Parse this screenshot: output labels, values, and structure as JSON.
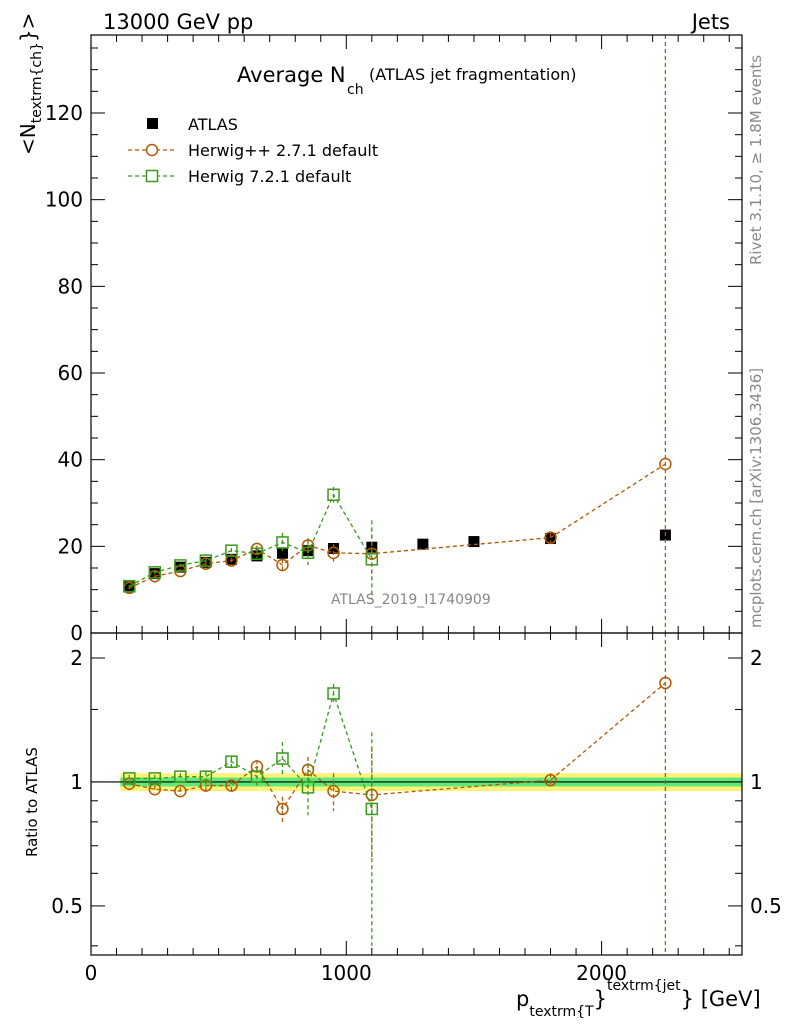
{
  "header": {
    "energy_label": "13000 GeV pp",
    "process_label": "Jets",
    "title_main": "Average N",
    "title_sub": "ch",
    "title_paren": "(ATLAS jet fragmentation)",
    "analysis_id": "ATLAS_2019_I1740909",
    "side_rivet": "Rivet 3.1.10, ≥ 1.8M events",
    "side_mcplots": "mcplots.cern.ch [arXiv:1306.3436]"
  },
  "axes": {
    "ylabel_main_prefix": "<N",
    "ylabel_main_sub": "textrm{ch}",
    "ylabel_main_suffix": "}>",
    "ylabel_ratio": "Ratio to ATLAS",
    "xlabel_prefix": "p",
    "xlabel_sub": "textrm{T",
    "xlabel_mid": "}",
    "xlabel_sup": "textrm{jet",
    "xlabel_suffix": "} [GeV]"
  },
  "colors": {
    "data": "#000000",
    "herwigpp": "#b35900",
    "herwig7": "#3a9a1a",
    "band_inner": "#5ee87a",
    "band_outer": "#fff27a"
  },
  "chart_data": [
    {
      "type": "scatter",
      "panel": "main",
      "x_range": [
        0,
        2550
      ],
      "y_range": [
        0,
        138
      ],
      "x_ticks": [
        0,
        1000,
        2000
      ],
      "y_ticks": [
        0,
        20,
        40,
        60,
        80,
        100,
        120
      ],
      "y_tick_labels": [
        "0",
        "20",
        "40",
        "60",
        "80",
        "100",
        "120"
      ],
      "legend_position": "top-left",
      "series": [
        {
          "name": "ATLAS",
          "key": "atlas",
          "style": "data",
          "x": [
            150,
            250,
            350,
            450,
            550,
            650,
            750,
            850,
            950,
            1100,
            1300,
            1500,
            1800,
            2250
          ],
          "y": [
            10.6,
            13.7,
            15.2,
            16.3,
            17.0,
            17.8,
            18.4,
            19.0,
            19.5,
            19.8,
            20.5,
            21.1,
            21.8,
            22.6
          ]
        },
        {
          "name": "Herwig++ 2.7.1 default",
          "key": "herwigpp",
          "style": "circle",
          "x": [
            150,
            250,
            350,
            450,
            550,
            650,
            750,
            850,
            950,
            1100,
            1800,
            2250
          ],
          "y": [
            10.4,
            13.1,
            14.3,
            16.0,
            16.7,
            19.4,
            15.7,
            20.2,
            18.5,
            18.3,
            22.0,
            39.0
          ],
          "err": [
            0.3,
            0.3,
            0.4,
            0.5,
            0.6,
            0.8,
            1.3,
            1.7,
            2.0,
            6.0,
            1.0,
            200
          ]
        },
        {
          "name": "Herwig 7.2.1 default",
          "key": "herwig7",
          "style": "square",
          "x": [
            150,
            250,
            350,
            450,
            550,
            650,
            750,
            850,
            950,
            1100
          ],
          "y": [
            10.8,
            14.0,
            15.6,
            16.7,
            19.0,
            18.3,
            20.9,
            18.5,
            31.9,
            17.0
          ],
          "err": [
            0.3,
            0.4,
            0.4,
            0.5,
            0.6,
            1.0,
            2.2,
            2.8,
            1.8,
            9.0
          ]
        }
      ]
    },
    {
      "type": "scatter",
      "panel": "ratio",
      "x_range": [
        0,
        2550
      ],
      "y_range": [
        0.38,
        2.3
      ],
      "y_scale": "log",
      "x_ticks": [
        0,
        1000,
        2000
      ],
      "x_tick_labels": [
        "0",
        "1000",
        "2000"
      ],
      "y_ticks": [
        0.5,
        1,
        2
      ],
      "y_tick_labels": [
        "0.5",
        "1",
        "2"
      ],
      "reference_line": 1,
      "band_inner": 0.025,
      "band_outer": 0.05,
      "series": [
        {
          "name": "Herwig++ 2.7.1 default",
          "key": "herwigpp",
          "style": "circle",
          "x": [
            150,
            250,
            350,
            450,
            550,
            650,
            750,
            850,
            950,
            1100,
            1800,
            2250
          ],
          "y": [
            0.99,
            0.96,
            0.95,
            0.98,
            0.98,
            1.09,
            0.86,
            1.07,
            0.95,
            0.93,
            1.01,
            1.74
          ],
          "err": [
            0.02,
            0.02,
            0.02,
            0.03,
            0.03,
            0.04,
            0.06,
            0.08,
            0.1,
            0.28,
            0.04,
            10
          ]
        },
        {
          "name": "Herwig 7.2.1 default",
          "key": "herwig7",
          "style": "square",
          "x": [
            150,
            250,
            350,
            450,
            550,
            650,
            750,
            850,
            950,
            1100
          ],
          "y": [
            1.02,
            1.02,
            1.03,
            1.03,
            1.12,
            1.03,
            1.14,
            0.97,
            1.64,
            0.86
          ],
          "err": [
            0.02,
            0.02,
            0.02,
            0.03,
            0.03,
            0.05,
            0.11,
            0.14,
            0.09,
            0.46
          ]
        }
      ]
    }
  ]
}
